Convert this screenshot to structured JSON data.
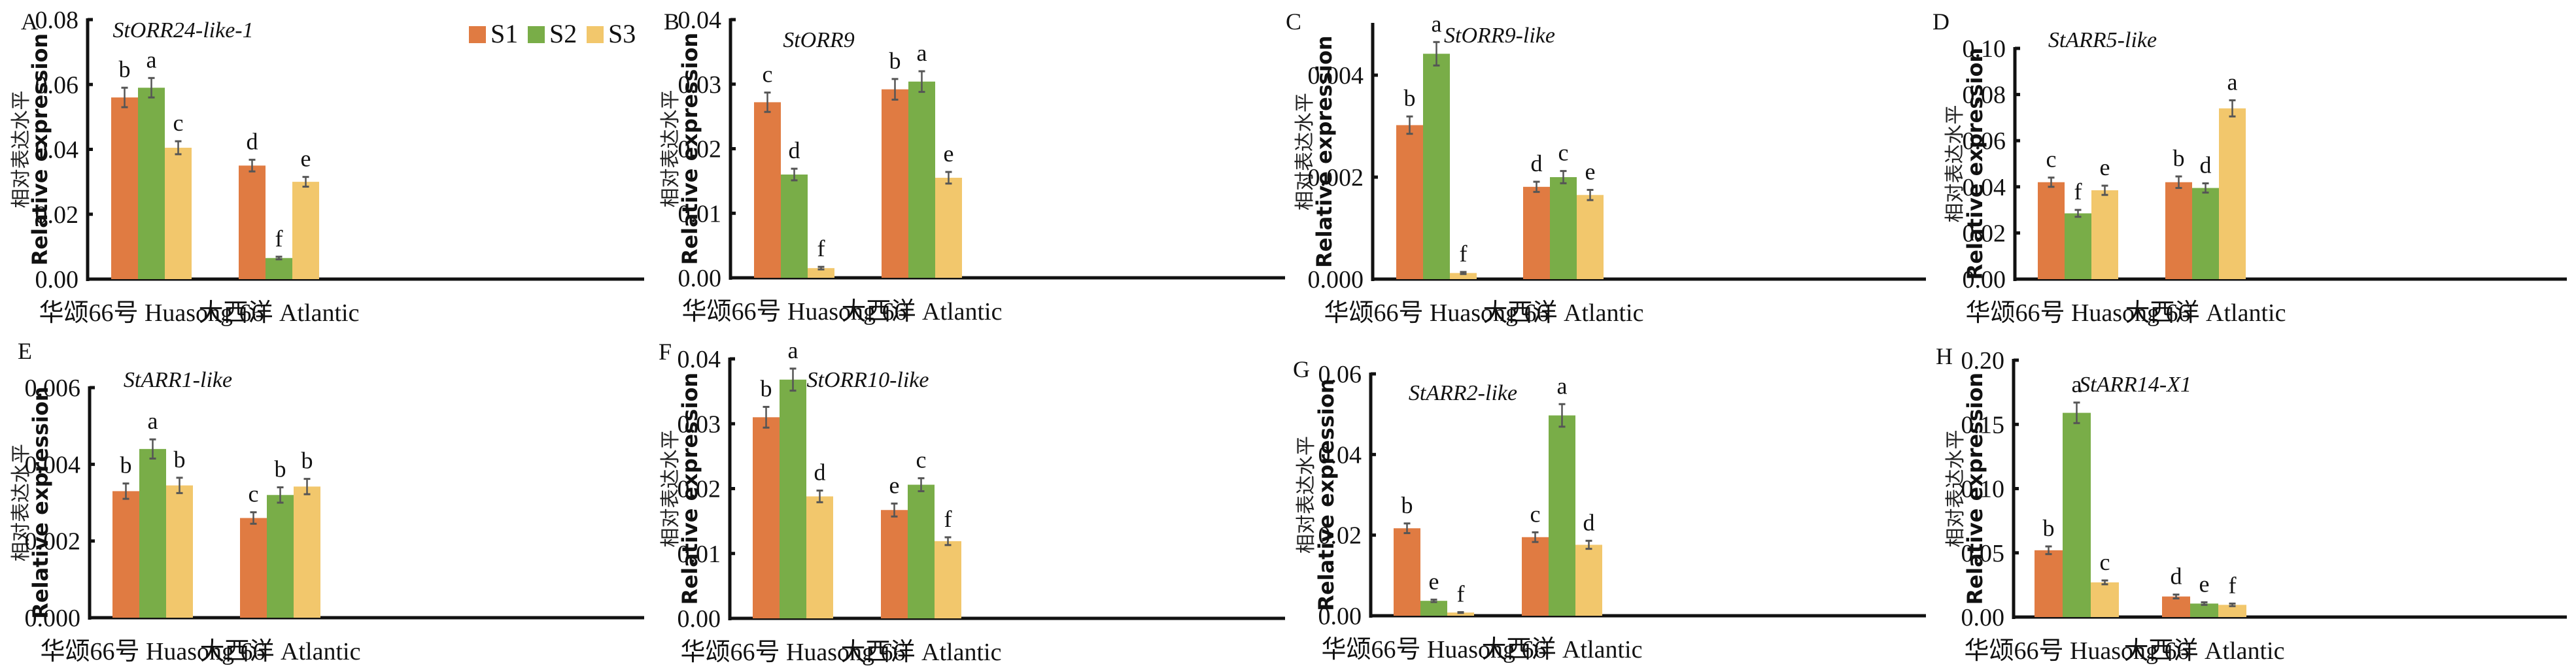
{
  "figure": {
    "legend": [
      {
        "name": "S1",
        "color": "#e07b42"
      },
      {
        "name": "S2",
        "color": "#79ad48"
      },
      {
        "name": "S3",
        "color": "#f2c76c"
      }
    ],
    "errorbar_color": "#555555",
    "ylabel_cn": "相对表达水平",
    "ylabel_en": "Relative expression",
    "categories": [
      "华颂66号 Huasong 66",
      "大西洋 Atlantic"
    ]
  },
  "chart_data": [
    {
      "type": "bar",
      "panel": "A",
      "title": "StORR24-like-1",
      "xlabel": "",
      "ylabel": "相对表达水平 Relative expression",
      "categories": [
        "华颂66号 Huasong 66",
        "大西洋 Atlantic"
      ],
      "ylim": [
        0,
        0.08
      ],
      "yticks": [
        "0.00",
        "0.02",
        "0.04",
        "0.06",
        "0.08"
      ],
      "legend": "top-right",
      "series": [
        {
          "name": "S1",
          "values": [
            0.056,
            0.035
          ],
          "errors": [
            0.003,
            0.0018
          ],
          "letters": [
            "b",
            "d"
          ]
        },
        {
          "name": "S2",
          "values": [
            0.059,
            0.0065
          ],
          "errors": [
            0.003,
            0.0004
          ],
          "letters": [
            "a",
            "f"
          ]
        },
        {
          "name": "S3",
          "values": [
            0.0405,
            0.03
          ],
          "errors": [
            0.002,
            0.0015
          ],
          "letters": [
            "c",
            "e"
          ]
        }
      ]
    },
    {
      "type": "bar",
      "panel": "B",
      "title": "StORR9",
      "xlabel": "",
      "ylabel": "相对表达水平 Relative expression",
      "categories": [
        "华颂66号 Huasong 66",
        "大西洋 Atlantic"
      ],
      "ylim": [
        0,
        0.04
      ],
      "yticks": [
        "0.00",
        "0.01",
        "0.02",
        "0.03",
        "0.04"
      ],
      "series": [
        {
          "name": "S1",
          "values": [
            0.0272,
            0.0292
          ],
          "errors": [
            0.0015,
            0.0016
          ],
          "letters": [
            "c",
            "b"
          ]
        },
        {
          "name": "S2",
          "values": [
            0.016,
            0.0304
          ],
          "errors": [
            0.0009,
            0.0016
          ],
          "letters": [
            "d",
            "a"
          ]
        },
        {
          "name": "S3",
          "values": [
            0.0015,
            0.0155
          ],
          "errors": [
            0.0002,
            0.0009
          ],
          "letters": [
            "f",
            "e"
          ]
        }
      ]
    },
    {
      "type": "bar",
      "panel": "C",
      "title": "StORR9-like",
      "xlabel": "",
      "ylabel": "相对表达水平 Relative expression",
      "categories": [
        "华颂66号 Huasong 66",
        "大西洋 Atlantic"
      ],
      "ylim": [
        0,
        0.005
      ],
      "yticks": [
        "0.000",
        "0.002",
        "0.004"
      ],
      "series": [
        {
          "name": "S1",
          "values": [
            0.00302,
            0.00181
          ],
          "errors": [
            0.00017,
            0.0001
          ],
          "letters": [
            "b",
            "d"
          ]
        },
        {
          "name": "S2",
          "values": [
            0.00442,
            0.002
          ],
          "errors": [
            0.00023,
            0.00012
          ],
          "letters": [
            "a",
            "c"
          ]
        },
        {
          "name": "S3",
          "values": [
            0.00012,
            0.00165
          ],
          "errors": [
            2e-05,
            0.0001
          ],
          "letters": [
            "f",
            "e"
          ]
        }
      ]
    },
    {
      "type": "bar",
      "panel": "D",
      "title": "StARR5-like",
      "xlabel": "",
      "ylabel": "相对表达水平 Relative expression",
      "categories": [
        "华颂66号 Huasong 66",
        "大西洋 Atlantic"
      ],
      "ylim": [
        0,
        0.1
      ],
      "yticks": [
        "0.00",
        "0.02",
        "0.04",
        "0.06",
        "0.08",
        "0.10"
      ],
      "series": [
        {
          "name": "S1",
          "values": [
            0.042,
            0.042
          ],
          "errors": [
            0.002,
            0.0025
          ],
          "letters": [
            "c",
            "b"
          ]
        },
        {
          "name": "S2",
          "values": [
            0.0285,
            0.0395
          ],
          "errors": [
            0.0015,
            0.002
          ],
          "letters": [
            "f",
            "d"
          ]
        },
        {
          "name": "S3",
          "values": [
            0.0385,
            0.074
          ],
          "errors": [
            0.002,
            0.0035
          ],
          "letters": [
            "e",
            "a"
          ]
        }
      ]
    },
    {
      "type": "bar",
      "panel": "E",
      "title": "StARR1-like",
      "xlabel": "",
      "ylabel": "相对表达水平 Relative expression",
      "categories": [
        "华颂66号 Huasong 66",
        "大西洋 Atlantic"
      ],
      "ylim": [
        0,
        0.006
      ],
      "yticks": [
        "0.000",
        "0.002",
        "0.004",
        "0.006"
      ],
      "series": [
        {
          "name": "S1",
          "values": [
            0.0033,
            0.0026
          ],
          "errors": [
            0.0002,
            0.00015
          ],
          "letters": [
            "b",
            "c"
          ]
        },
        {
          "name": "S2",
          "values": [
            0.0044,
            0.0032
          ],
          "errors": [
            0.00025,
            0.0002
          ],
          "letters": [
            "a",
            "b"
          ]
        },
        {
          "name": "S3",
          "values": [
            0.00345,
            0.00342
          ],
          "errors": [
            0.0002,
            0.0002
          ],
          "letters": [
            "b",
            "b"
          ]
        }
      ]
    },
    {
      "type": "bar",
      "panel": "F",
      "title": "StORR10-like",
      "xlabel": "",
      "ylabel": "相对表达水平 Relative expression",
      "categories": [
        "华颂66号 Huasong 66",
        "大西洋 Atlantic"
      ],
      "ylim": [
        0,
        0.04
      ],
      "yticks": [
        "0.00",
        "0.01",
        "0.02",
        "0.03",
        "0.04"
      ],
      "series": [
        {
          "name": "S1",
          "values": [
            0.031,
            0.0167
          ],
          "errors": [
            0.0016,
            0.001
          ],
          "letters": [
            "b",
            "e"
          ]
        },
        {
          "name": "S2",
          "values": [
            0.0368,
            0.0206
          ],
          "errors": [
            0.0017,
            0.001
          ],
          "letters": [
            "a",
            "c"
          ]
        },
        {
          "name": "S3",
          "values": [
            0.0188,
            0.0119
          ],
          "errors": [
            0.0009,
            0.0006
          ],
          "letters": [
            "d",
            "f"
          ]
        }
      ]
    },
    {
      "type": "bar",
      "panel": "G",
      "title": "StARR2-like",
      "xlabel": "",
      "ylabel": "相对表达水平 Relative expression",
      "categories": [
        "华颂66号 Huasong 66",
        "大西洋 Atlantic"
      ],
      "ylim": [
        0,
        0.06
      ],
      "yticks": [
        "0.00",
        "0.02",
        "0.04",
        "0.06"
      ],
      "series": [
        {
          "name": "S1",
          "values": [
            0.0217,
            0.0195
          ],
          "errors": [
            0.0012,
            0.0012
          ],
          "letters": [
            "b",
            "c"
          ]
        },
        {
          "name": "S2",
          "values": [
            0.0037,
            0.0497
          ],
          "errors": [
            0.0003,
            0.0028
          ],
          "letters": [
            "e",
            "a"
          ]
        },
        {
          "name": "S3",
          "values": [
            0.0008,
            0.0176
          ],
          "errors": [
            0.0001,
            0.001
          ],
          "letters": [
            "f",
            "d"
          ]
        }
      ]
    },
    {
      "type": "bar",
      "panel": "H",
      "title": "StARR14-X1",
      "xlabel": "",
      "ylabel": "相对表达水平 Relative expression",
      "categories": [
        "华颂66号 Huasong 66",
        "大西洋 Atlantic"
      ],
      "ylim": [
        0,
        0.2
      ],
      "yticks": [
        "0.00",
        "0.05",
        "0.10",
        "0.15",
        "0.20"
      ],
      "series": [
        {
          "name": "S1",
          "values": [
            0.052,
            0.016
          ],
          "errors": [
            0.003,
            0.0015
          ],
          "letters": [
            "b",
            "d"
          ]
        },
        {
          "name": "S2",
          "values": [
            0.159,
            0.0105
          ],
          "errors": [
            0.008,
            0.001
          ],
          "letters": [
            "a",
            "e"
          ]
        },
        {
          "name": "S3",
          "values": [
            0.027,
            0.0095
          ],
          "errors": [
            0.0015,
            0.001
          ],
          "letters": [
            "c",
            "f"
          ]
        }
      ]
    }
  ]
}
